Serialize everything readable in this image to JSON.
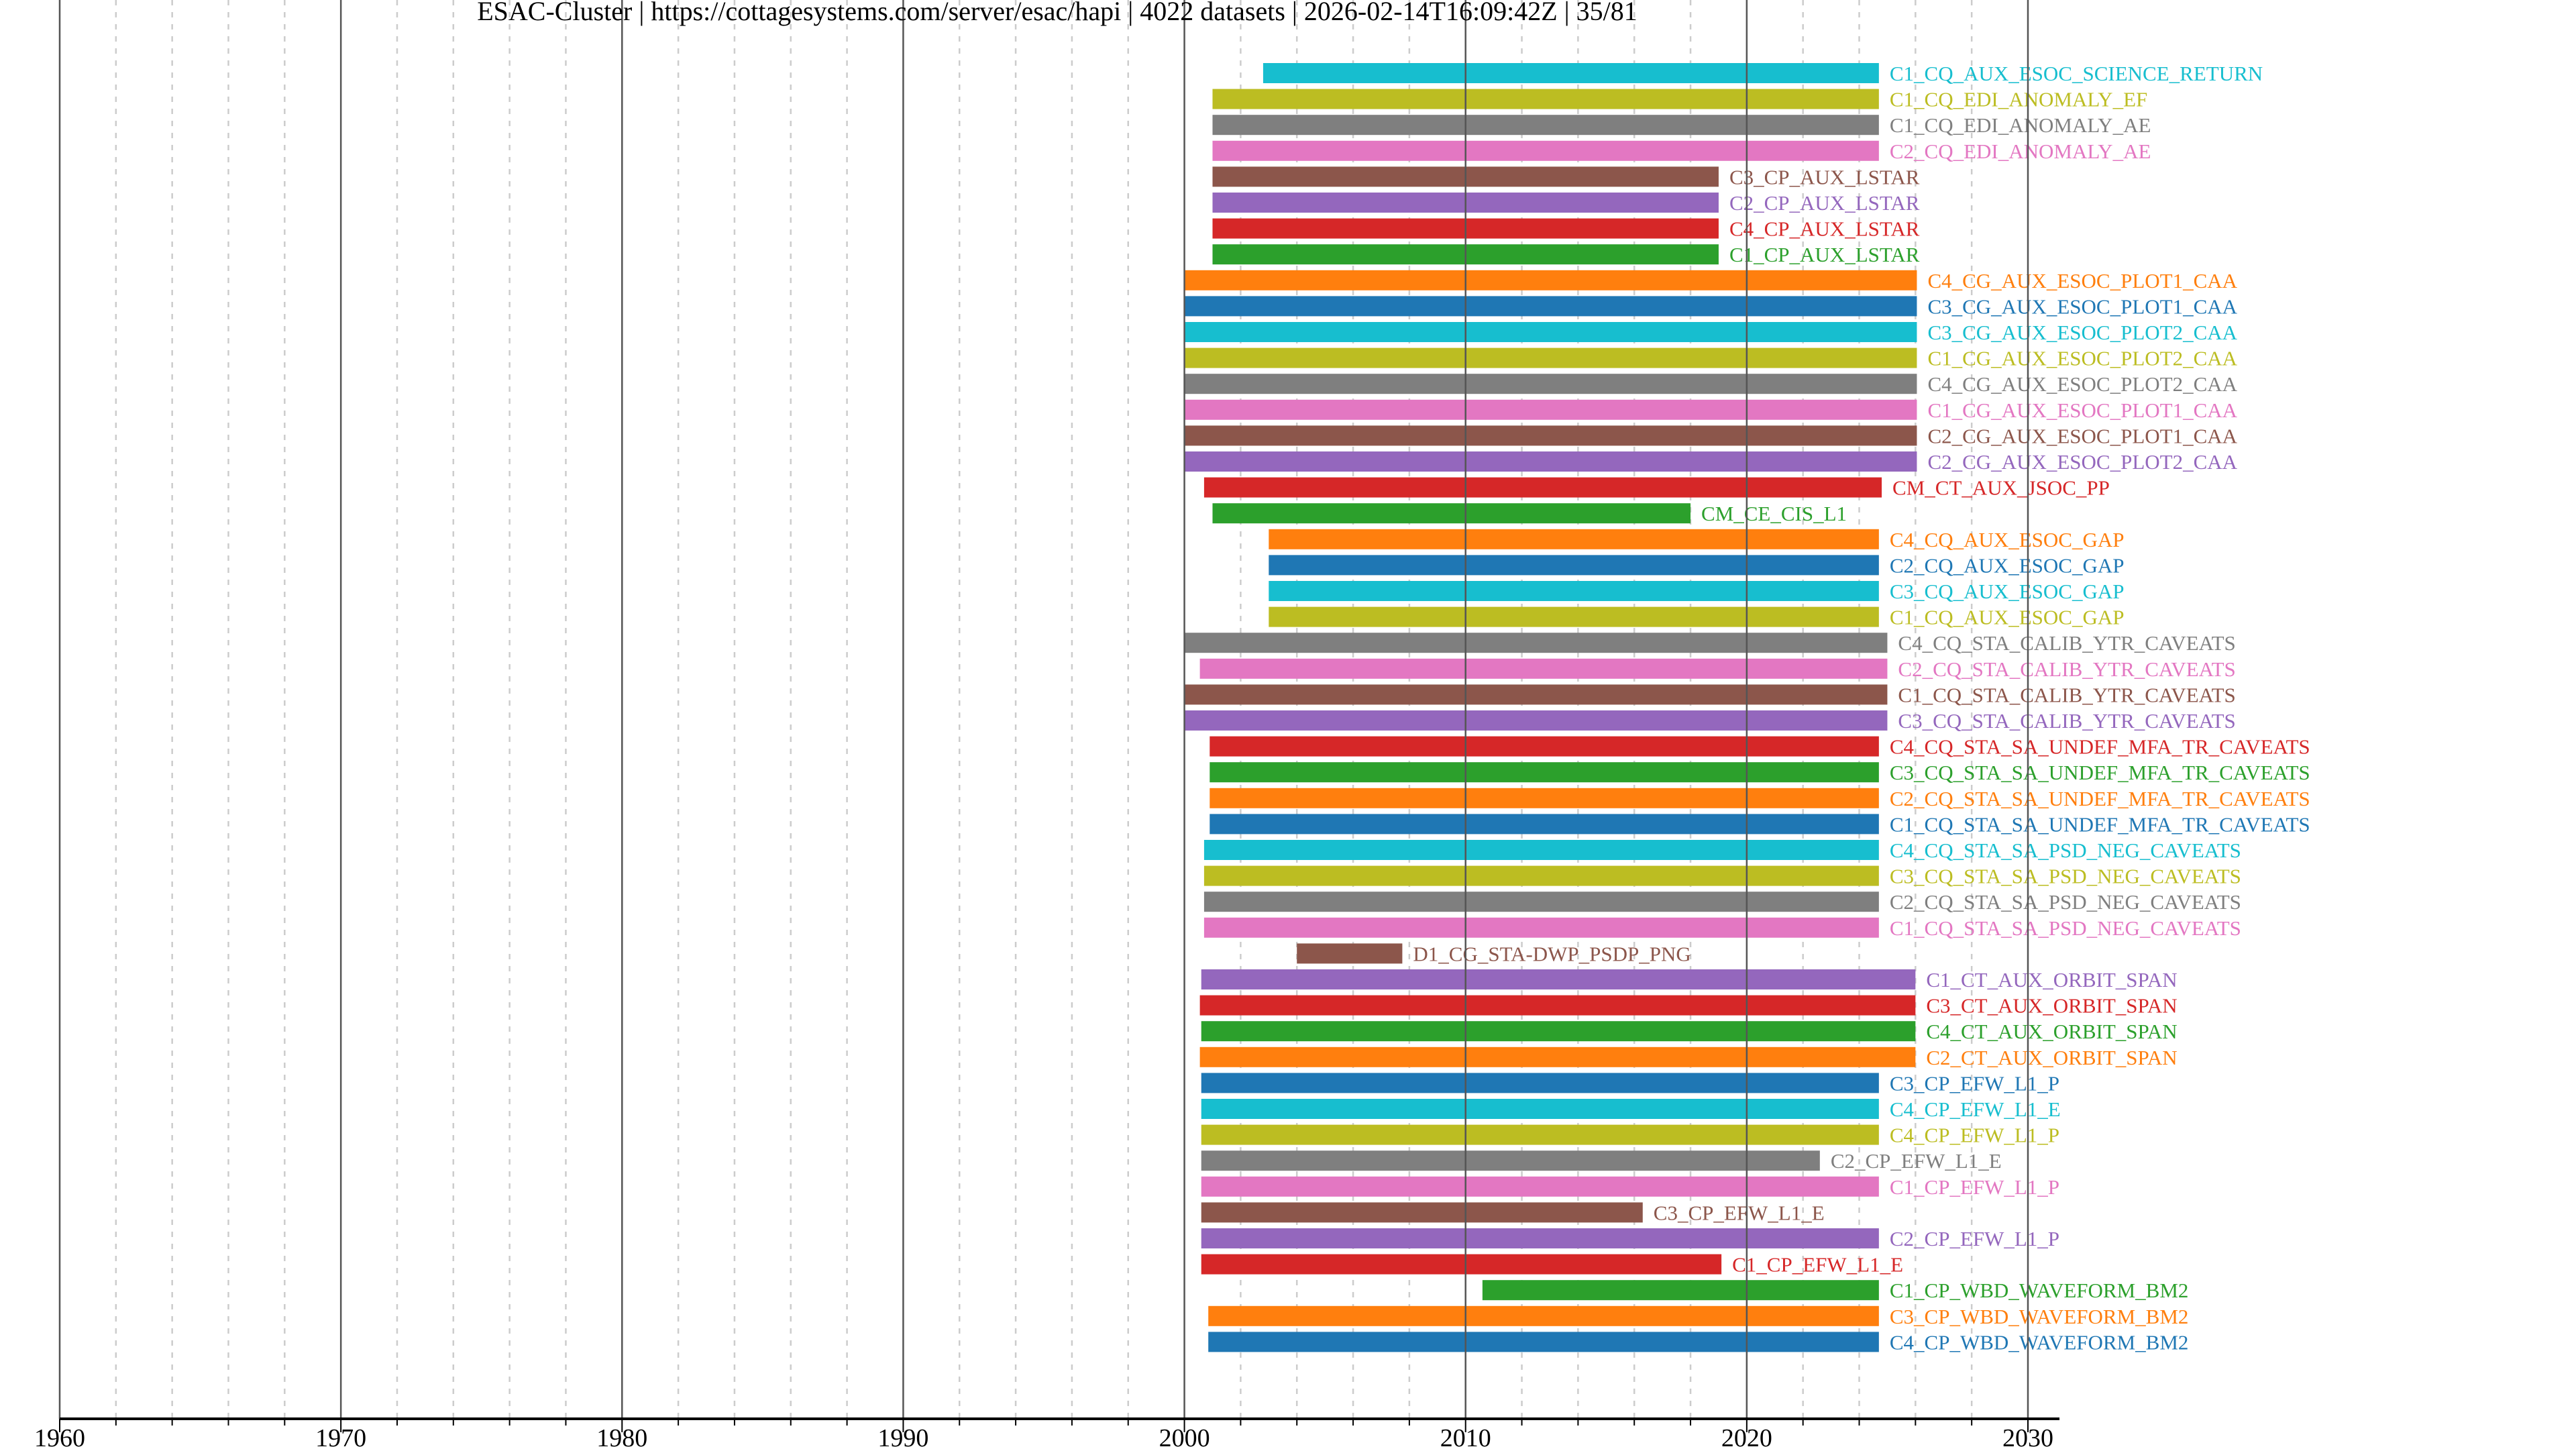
{
  "title": "ESAC-Cluster | https://cottagesystems.com/server/esac/hapi | 4022 datasets | 2026-02-14T16:09:42Z | 35/81",
  "chart_data": {
    "type": "timeline",
    "title": "ESAC-Cluster | https://cottagesystems.com/server/esac/hapi | 4022 datasets | 2026-02-14T16:09:42Z | 35/81",
    "xlabel": "",
    "ylabel": "",
    "xlim": [
      1960,
      2032
    ],
    "xticks": [
      "1960",
      "1970",
      "1980",
      "1990",
      "2000",
      "2010",
      "2020",
      "2030"
    ],
    "grid": {
      "major_every_years": 10,
      "minor_every_years": 2
    },
    "colors": {
      "blue": "#1f77b4",
      "orange": "#ff7f0e",
      "green": "#2ca02c",
      "red": "#d62728",
      "purple": "#9467bd",
      "brown": "#8c564b",
      "pink": "#e377c2",
      "gray": "#7f7f7f",
      "olive": "#bcbd22",
      "cyan": "#17becf"
    },
    "datasets": [
      {
        "name": "C1_CQ_AUX_ESOC_SCIENCE_RETURN",
        "start": 2002.8,
        "end": 2024.7,
        "color": "cyan"
      },
      {
        "name": "C1_CQ_EDI_ANOMALY_EF",
        "start": 2001.0,
        "end": 2024.7,
        "color": "olive"
      },
      {
        "name": "C1_CQ_EDI_ANOMALY_AE",
        "start": 2001.0,
        "end": 2024.7,
        "color": "gray"
      },
      {
        "name": "C2_CQ_EDI_ANOMALY_AE",
        "start": 2001.0,
        "end": 2024.7,
        "color": "pink"
      },
      {
        "name": "C3_CP_AUX_LSTAR",
        "start": 2001.0,
        "end": 2019.0,
        "color": "brown"
      },
      {
        "name": "C2_CP_AUX_LSTAR",
        "start": 2001.0,
        "end": 2019.0,
        "color": "purple"
      },
      {
        "name": "C4_CP_AUX_LSTAR",
        "start": 2001.0,
        "end": 2019.0,
        "color": "red"
      },
      {
        "name": "C1_CP_AUX_LSTAR",
        "start": 2001.0,
        "end": 2019.0,
        "color": "green"
      },
      {
        "name": "C4_CG_AUX_ESOC_PLOT1_CAA",
        "start": 2000.0,
        "end": 2026.05,
        "color": "orange"
      },
      {
        "name": "C3_CG_AUX_ESOC_PLOT1_CAA",
        "start": 2000.0,
        "end": 2026.05,
        "color": "blue"
      },
      {
        "name": "C3_CG_AUX_ESOC_PLOT2_CAA",
        "start": 2000.0,
        "end": 2026.05,
        "color": "cyan"
      },
      {
        "name": "C1_CG_AUX_ESOC_PLOT2_CAA",
        "start": 2000.0,
        "end": 2026.05,
        "color": "olive"
      },
      {
        "name": "C4_CG_AUX_ESOC_PLOT2_CAA",
        "start": 2000.0,
        "end": 2026.05,
        "color": "gray"
      },
      {
        "name": "C1_CG_AUX_ESOC_PLOT1_CAA",
        "start": 2000.0,
        "end": 2026.05,
        "color": "pink"
      },
      {
        "name": "C2_CG_AUX_ESOC_PLOT1_CAA",
        "start": 2000.0,
        "end": 2026.05,
        "color": "brown"
      },
      {
        "name": "C2_CG_AUX_ESOC_PLOT2_CAA",
        "start": 2000.0,
        "end": 2026.05,
        "color": "purple"
      },
      {
        "name": "CM_CT_AUX_JSOC_PP",
        "start": 2000.7,
        "end": 2024.8,
        "color": "red"
      },
      {
        "name": "CM_CE_CIS_L1",
        "start": 2001.0,
        "end": 2018.0,
        "color": "green"
      },
      {
        "name": "C4_CQ_AUX_ESOC_GAP",
        "start": 2003.0,
        "end": 2024.7,
        "color": "orange"
      },
      {
        "name": "C2_CQ_AUX_ESOC_GAP",
        "start": 2003.0,
        "end": 2024.7,
        "color": "blue"
      },
      {
        "name": "C3_CQ_AUX_ESOC_GAP",
        "start": 2003.0,
        "end": 2024.7,
        "color": "cyan"
      },
      {
        "name": "C1_CQ_AUX_ESOC_GAP",
        "start": 2003.0,
        "end": 2024.7,
        "color": "olive"
      },
      {
        "name": "C4_CQ_STA_CALIB_YTR_CAVEATS",
        "start": 2000.0,
        "end": 2025.0,
        "color": "gray"
      },
      {
        "name": "C2_CQ_STA_CALIB_YTR_CAVEATS",
        "start": 2000.55,
        "end": 2025.0,
        "color": "pink"
      },
      {
        "name": "C1_CQ_STA_CALIB_YTR_CAVEATS",
        "start": 2000.0,
        "end": 2025.0,
        "color": "brown"
      },
      {
        "name": "C3_CQ_STA_CALIB_YTR_CAVEATS",
        "start": 2000.0,
        "end": 2025.0,
        "color": "purple"
      },
      {
        "name": "C4_CQ_STA_SA_UNDEF_MFA_TR_CAVEATS",
        "start": 2000.9,
        "end": 2024.7,
        "color": "red"
      },
      {
        "name": "C3_CQ_STA_SA_UNDEF_MFA_TR_CAVEATS",
        "start": 2000.9,
        "end": 2024.7,
        "color": "green"
      },
      {
        "name": "C2_CQ_STA_SA_UNDEF_MFA_TR_CAVEATS",
        "start": 2000.9,
        "end": 2024.7,
        "color": "orange"
      },
      {
        "name": "C1_CQ_STA_SA_UNDEF_MFA_TR_CAVEATS",
        "start": 2000.9,
        "end": 2024.7,
        "color": "blue"
      },
      {
        "name": "C4_CQ_STA_SA_PSD_NEG_CAVEATS",
        "start": 2000.7,
        "end": 2024.7,
        "color": "cyan"
      },
      {
        "name": "C3_CQ_STA_SA_PSD_NEG_CAVEATS",
        "start": 2000.7,
        "end": 2024.7,
        "color": "olive"
      },
      {
        "name": "C2_CQ_STA_SA_PSD_NEG_CAVEATS",
        "start": 2000.7,
        "end": 2024.7,
        "color": "gray"
      },
      {
        "name": "C1_CQ_STA_SA_PSD_NEG_CAVEATS",
        "start": 2000.7,
        "end": 2024.7,
        "color": "pink"
      },
      {
        "name": "D1_CG_STA-DWP_PSDP_PNG",
        "start": 2004.0,
        "end": 2007.75,
        "color": "brown"
      },
      {
        "name": "C1_CT_AUX_ORBIT_SPAN",
        "start": 2000.6,
        "end": 2026.0,
        "color": "purple"
      },
      {
        "name": "C3_CT_AUX_ORBIT_SPAN",
        "start": 2000.55,
        "end": 2026.0,
        "color": "red"
      },
      {
        "name": "C4_CT_AUX_ORBIT_SPAN",
        "start": 2000.6,
        "end": 2026.0,
        "color": "green"
      },
      {
        "name": "C2_CT_AUX_ORBIT_SPAN",
        "start": 2000.55,
        "end": 2026.0,
        "color": "orange"
      },
      {
        "name": "C3_CP_EFW_L1_P",
        "start": 2000.6,
        "end": 2024.7,
        "color": "blue"
      },
      {
        "name": "C4_CP_EFW_L1_E",
        "start": 2000.6,
        "end": 2024.7,
        "color": "cyan"
      },
      {
        "name": "C4_CP_EFW_L1_P",
        "start": 2000.6,
        "end": 2024.7,
        "color": "olive"
      },
      {
        "name": "C2_CP_EFW_L1_E",
        "start": 2000.6,
        "end": 2022.6,
        "color": "gray"
      },
      {
        "name": "C1_CP_EFW_L1_P",
        "start": 2000.6,
        "end": 2024.7,
        "color": "pink"
      },
      {
        "name": "C3_CP_EFW_L1_E",
        "start": 2000.6,
        "end": 2016.3,
        "color": "brown"
      },
      {
        "name": "C2_CP_EFW_L1_P",
        "start": 2000.6,
        "end": 2024.7,
        "color": "purple"
      },
      {
        "name": "C1_CP_EFW_L1_E",
        "start": 2000.6,
        "end": 2019.1,
        "color": "red"
      },
      {
        "name": "C1_CP_WBD_WAVEFORM_BM2",
        "start": 2010.6,
        "end": 2024.7,
        "color": "green"
      },
      {
        "name": "C3_CP_WBD_WAVEFORM_BM2",
        "start": 2000.85,
        "end": 2024.7,
        "color": "orange"
      },
      {
        "name": "C4_CP_WBD_WAVEFORM_BM2",
        "start": 2000.85,
        "end": 2024.7,
        "color": "blue"
      }
    ]
  }
}
